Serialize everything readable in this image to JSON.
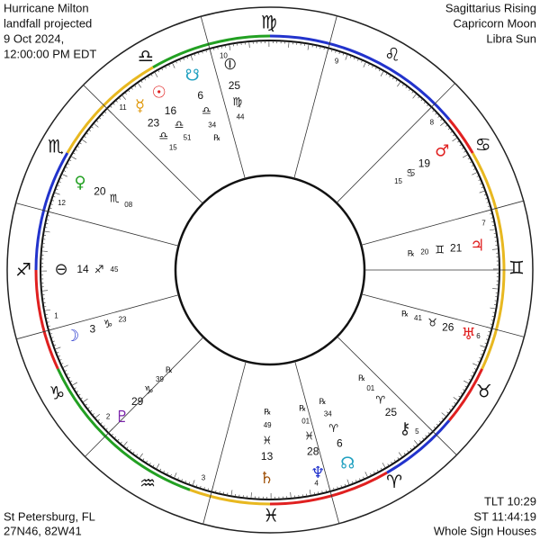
{
  "header": {
    "top_left": [
      "Hurricane Milton",
      "landfall projected",
      "9 Oct 2024,",
      "12:00:00 PM EDT"
    ],
    "top_right": [
      "Sagittarius Rising",
      "Capricorn Moon",
      "Libra Sun"
    ],
    "bottom_left": [
      "St Petersburg, FL",
      "27N46, 82W41"
    ],
    "bottom_right": [
      "TLT 10:29",
      "ST 11:44:19",
      "Whole Sign Houses"
    ]
  },
  "wheel": {
    "ascendant": {
      "sign": "♐",
      "degree": 14,
      "minute": "45"
    },
    "signs": [
      "♈",
      "♉",
      "♊",
      "♋",
      "♌",
      "♍",
      "♎",
      "♏",
      "♐",
      "♑",
      "♒",
      "♓"
    ],
    "houses": [
      "1",
      "2",
      "3",
      "4",
      "5",
      "6",
      "7",
      "8",
      "9",
      "10",
      "11",
      "12"
    ],
    "points": [
      {
        "glyph": "☉",
        "color": "#e02020",
        "degree": 16,
        "sign": "♎",
        "minute": "51"
      },
      {
        "glyph": "☽",
        "color": "#2233cc",
        "degree": 3,
        "sign": "♑",
        "minute": "23"
      },
      {
        "glyph": "☿",
        "color": "#e09a10",
        "degree": 23,
        "sign": "♎",
        "minute": "15"
      },
      {
        "glyph": "♀",
        "color": "#22a022",
        "degree": 20,
        "sign": "♏",
        "minute": "08"
      },
      {
        "glyph": "♂",
        "color": "#e02020",
        "degree": 19,
        "sign": "♋",
        "minute": "15"
      },
      {
        "glyph": "♃",
        "color": "#e02020",
        "degree": 21,
        "sign": "♊",
        "minute": "20",
        "retro": "℞"
      },
      {
        "glyph": "♄",
        "color": "#a0520a",
        "degree": 13,
        "sign": "♓",
        "minute": "49",
        "retro": "℞"
      },
      {
        "glyph": "♅",
        "color": "#e02020",
        "degree": 26,
        "sign": "♉",
        "minute": "41",
        "retro": "℞"
      },
      {
        "glyph": "♆",
        "color": "#2233cc",
        "degree": 28,
        "sign": "♓",
        "minute": "01",
        "retro": "℞"
      },
      {
        "glyph": "♇",
        "color": "#7a22aa",
        "degree": 29,
        "sign": "♑",
        "minute": "39",
        "retro": "℞"
      },
      {
        "glyph": "☊",
        "color": "#20a0c0",
        "degree": 6,
        "sign": "♈",
        "minute": "34",
        "retro": "℞"
      },
      {
        "glyph": "☋",
        "color": "#20a0c0",
        "degree": 6,
        "sign": "♎",
        "minute": "34",
        "retro": "℞"
      },
      {
        "glyph": "⚷",
        "color": "#222222",
        "degree": 25,
        "sign": "♈",
        "minute": "01",
        "retro": "℞"
      },
      {
        "glyph": "⦶",
        "color": "#222222",
        "degree": 25,
        "sign": "♍",
        "minute": "44"
      },
      {
        "glyph": "⊖",
        "color": "#222222",
        "degree": 14,
        "sign": "♐",
        "minute": "45"
      }
    ]
  }
}
